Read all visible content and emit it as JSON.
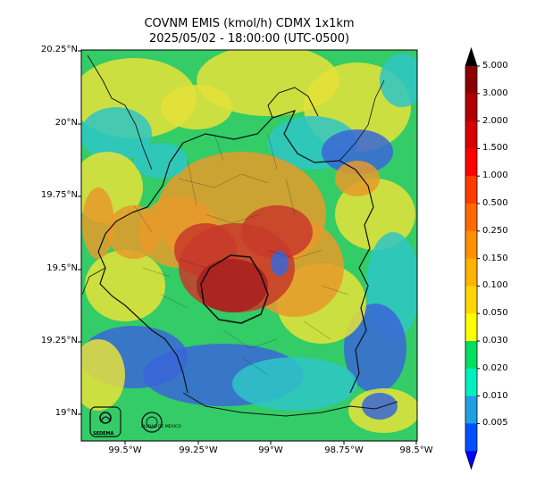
{
  "title": {
    "line1": "COVNM EMIS (kmol/h) CDMX 1x1km",
    "line2": "2025/05/02 - 18:00:00 (UTC-0500)"
  },
  "axes": {
    "y_ticks": [
      "20.25°N",
      "20°N",
      "19.75°N",
      "19.5°N",
      "19.25°N",
      "19°N"
    ],
    "x_ticks": [
      "99.5°W",
      "99.25°W",
      "99°W",
      "98.75°W",
      "98.5°W"
    ]
  },
  "colorbar": {
    "labels": [
      "5.000",
      "3.000",
      "2.000",
      "1.500",
      "1.000",
      "0.500",
      "0.250",
      "0.150",
      "0.100",
      "0.050",
      "0.030",
      "0.020",
      "0.010",
      "0.005"
    ],
    "colors": [
      "#8b0000",
      "#b00000",
      "#d80000",
      "#ff0000",
      "#ff3c00",
      "#ff6a00",
      "#ff9000",
      "#ffb400",
      "#ffd700",
      "#ffff00",
      "#00e060",
      "#00f0c0",
      "#20a0e0",
      "#0050ff"
    ],
    "over_color": "#000000",
    "under_color": "#0000ff"
  },
  "logos": {
    "sedema": "SEDEMA",
    "cdmx": "CIUDAD DE MÉXICO"
  },
  "map_colors": {
    "blue": "#3a66d8",
    "cyan": "#2fc6c6",
    "green": "#33cc66",
    "yellow": "#e6e23a",
    "orange": "#e89a2a",
    "red": "#c83a2a",
    "darkred": "#a81e1e"
  }
}
